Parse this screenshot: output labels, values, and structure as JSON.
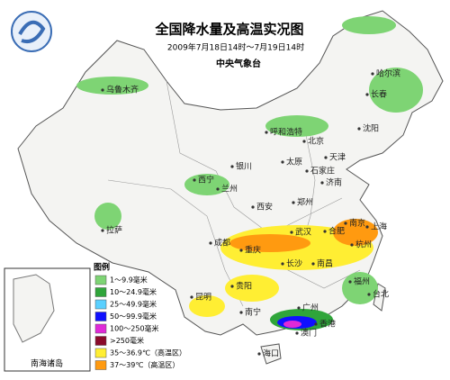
{
  "header": {
    "title": "全国降水量及高温实况图",
    "subtitle": "2009年7月18日14时～7月19日14时",
    "agency": "中央气象台"
  },
  "legend": {
    "title": "图例",
    "items": [
      {
        "label": "1～9.9毫米",
        "color": "#7ed474"
      },
      {
        "label": "10～24.9毫米",
        "color": "#2fa53a"
      },
      {
        "label": "25～49.9毫米",
        "color": "#5ad0ff"
      },
      {
        "label": "50～99.9毫米",
        "color": "#1010ff"
      },
      {
        "label": "100～250毫米",
        "color": "#e02ad8"
      },
      {
        "label": ">250毫米",
        "color": "#8a0a2a"
      },
      {
        "label": "35～36.9℃（高温区）",
        "color": "#ffee33"
      },
      {
        "label": "37～39℃（高温区）",
        "color": "#ff9a10"
      }
    ]
  },
  "cities": [
    "乌鲁木齐",
    "哈尔滨",
    "长春",
    "沈阳",
    "呼和浩特",
    "北京",
    "天津",
    "太原",
    "石家庄",
    "银川",
    "西宁",
    "兰州",
    "济南",
    "郑州",
    "西安",
    "拉萨",
    "成都",
    "武汉",
    "合肥",
    "南京",
    "上海",
    "杭州",
    "重庆",
    "长沙",
    "南昌",
    "贵阳",
    "福州",
    "昆明",
    "台北",
    "南宁",
    "广州",
    "香港",
    "澳门",
    "海口"
  ],
  "inset": {
    "label": "南海诸岛"
  }
}
